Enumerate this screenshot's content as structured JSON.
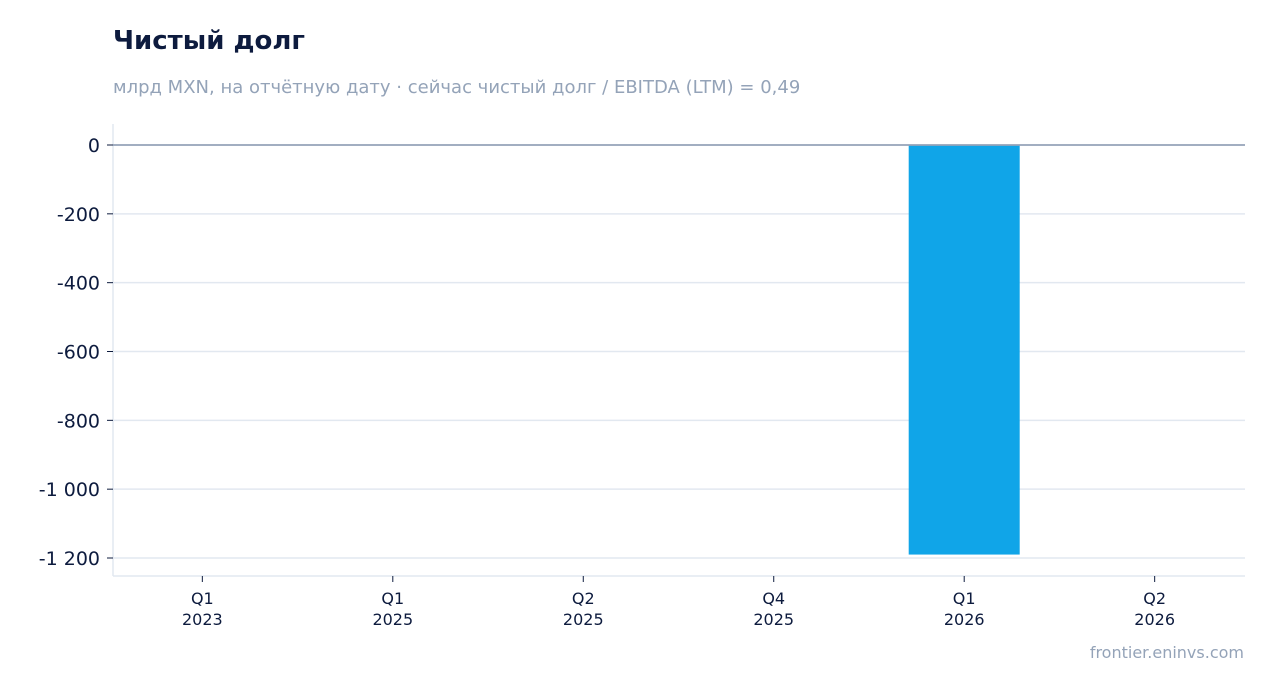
{
  "header": {
    "title": "Чистый долг",
    "subtitle": "млрд MXN, на отчётную дату · сейчас чистый долг / EBITDA (LTM) = 0,49"
  },
  "footer": {
    "source": "frontier.eninvs.com"
  },
  "colors": {
    "bar": "#10a5e8",
    "zero_line": "#94a3b8",
    "grid": "#e2e8f0",
    "axis": "#e2e8f0",
    "text": "#0d1b3e"
  },
  "chart_data": {
    "type": "bar",
    "categories": [
      [
        "Q1",
        "2023"
      ],
      [
        "Q1",
        "2025"
      ],
      [
        "Q2",
        "2025"
      ],
      [
        "Q4",
        "2025"
      ],
      [
        "Q1",
        "2026"
      ],
      [
        "Q2",
        "2026"
      ]
    ],
    "values": [
      0,
      0,
      0,
      0,
      -1190,
      0
    ],
    "ylim": [
      -1250,
      60
    ],
    "yticks": [
      0,
      -200,
      -400,
      -600,
      -800,
      -1000,
      -1200
    ],
    "ytick_labels": [
      "0",
      "-200",
      "-400",
      "-600",
      "-800",
      "-1 000",
      "-1 200"
    ],
    "grid": true,
    "legend": false
  }
}
